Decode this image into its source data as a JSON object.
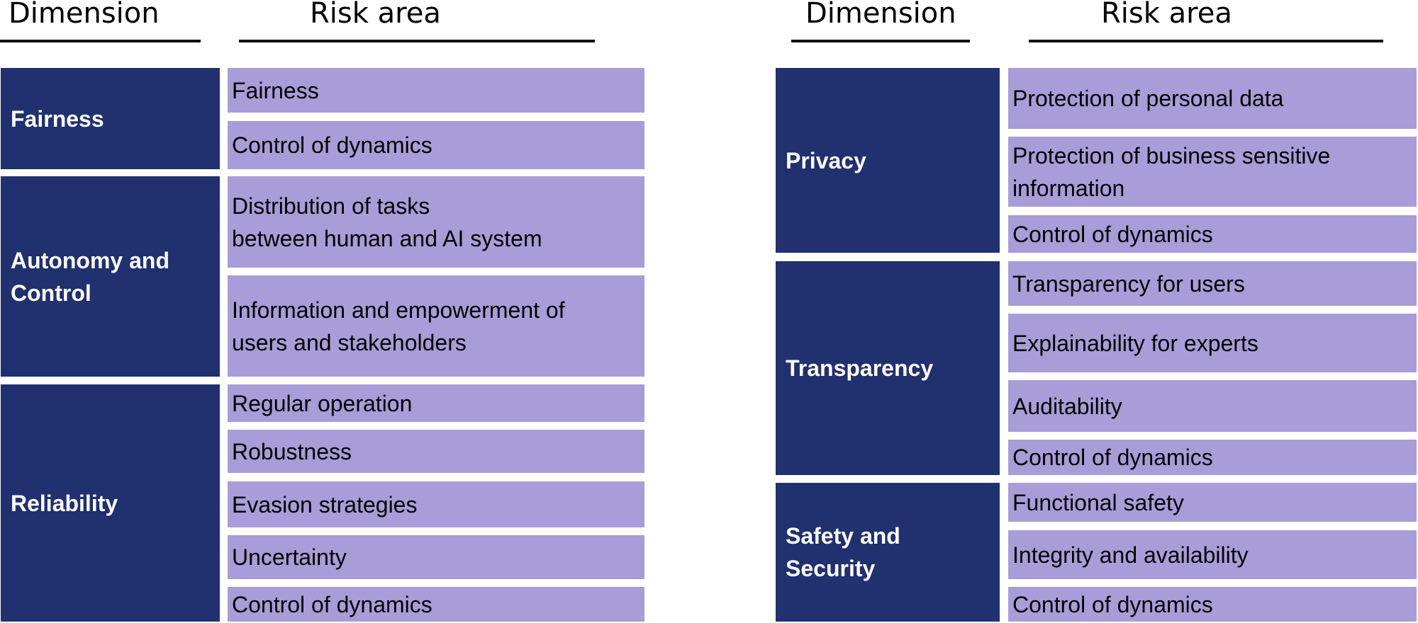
{
  "colors": {
    "dimension_bg": "#21306e",
    "risk_bg": "#a89dd8"
  },
  "left": {
    "header_dimension": "Dimension",
    "header_risk": "Risk area",
    "groups": [
      {
        "dimension": "Fairness",
        "risks": [
          "Fairness",
          "Control of dynamics"
        ]
      },
      {
        "dimension": "Autonomy and\nControl",
        "risks": [
          "Distribution of tasks\nbetween human and AI system",
          "Information and empowerment of\nusers and stakeholders"
        ]
      },
      {
        "dimension": "Reliability",
        "risks": [
          "Regular operation",
          "Robustness",
          "Evasion strategies",
          "Uncertainty",
          "Control of dynamics"
        ]
      }
    ]
  },
  "right": {
    "header_dimension": "Dimension",
    "header_risk": "Risk area",
    "groups": [
      {
        "dimension": "Privacy",
        "risks": [
          "Protection of personal data",
          "Protection of business sensitive\ninformation",
          "Control of dynamics"
        ]
      },
      {
        "dimension": "Transparency",
        "risks": [
          "Transparency for users",
          "Explainability for experts",
          "Auditability",
          "Control of dynamics"
        ]
      },
      {
        "dimension": "Safety and\nSecurity",
        "risks": [
          "Functional safety",
          "Integrity and availability",
          "Control of dynamics"
        ]
      }
    ]
  }
}
